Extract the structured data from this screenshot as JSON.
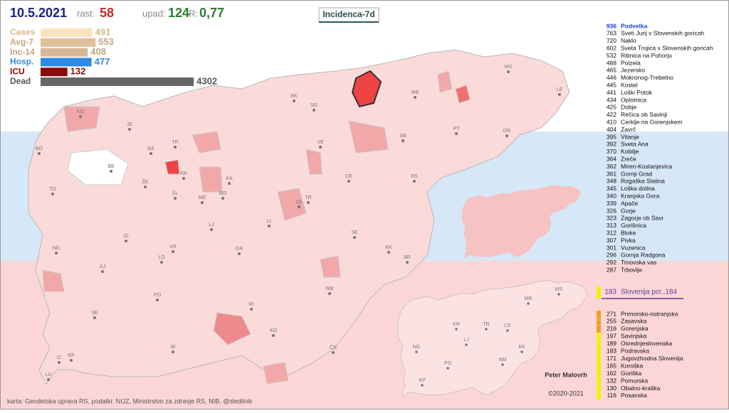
{
  "header": {
    "date": "10.5.2021",
    "rast_label": "rast:",
    "rast": 58,
    "upad_label": "upad:",
    "upad": 124,
    "r_label": "R:",
    "r": "0,77",
    "title": "Incidenca-7d"
  },
  "stats": [
    {
      "label": "Cases",
      "value": 491,
      "color": "#fde3bd",
      "text_color": "#d7b98f"
    },
    {
      "label": "Avg-7",
      "value": 553,
      "color": "#dfbf9c",
      "text_color": "#caa67d"
    },
    {
      "label": "Inc-14",
      "value": 408,
      "color": "#d8b898",
      "text_color": "#c4a07c"
    },
    {
      "label": "Hosp.",
      "value": 477,
      "color": "#2e8be6",
      "text_color": "#2e8be6"
    },
    {
      "label": "ICU",
      "value": 132,
      "color": "#8b0a0a",
      "text_color": "#8b0a0a"
    },
    {
      "label": "Dead",
      "value": 4302,
      "color": "#666666",
      "text_color": "#555555"
    }
  ],
  "municipalities": [
    {
      "value": 936,
      "name": "Podvelka"
    },
    {
      "value": 763,
      "name": "Sveti Jurij v Slovenskih goricah"
    },
    {
      "value": 720,
      "name": "Naklo"
    },
    {
      "value": 602,
      "name": "Sveta Trojica v Slovenskih goricah"
    },
    {
      "value": 532,
      "name": "Ribnica na Pohorju"
    },
    {
      "value": 488,
      "name": "Polzela"
    },
    {
      "value": 465,
      "name": "Jezersko"
    },
    {
      "value": 446,
      "name": "Mokronog-Trebelno"
    },
    {
      "value": 445,
      "name": "Kostel"
    },
    {
      "value": 441,
      "name": "Loški Potok"
    },
    {
      "value": 434,
      "name": "Oplotnica"
    },
    {
      "value": 425,
      "name": "Dobje"
    },
    {
      "value": 422,
      "name": "Rečica ob Savinji"
    },
    {
      "value": 410,
      "name": "Cerklje na Gorenjskem"
    },
    {
      "value": 404,
      "name": "Zavrč"
    },
    {
      "value": 395,
      "name": "Vitanje"
    },
    {
      "value": 392,
      "name": "Sveta Ana"
    },
    {
      "value": 370,
      "name": "Kobilje"
    },
    {
      "value": 364,
      "name": "Zreče"
    },
    {
      "value": 362,
      "name": "Miren-Kostanjevica"
    },
    {
      "value": 361,
      "name": "Gornji Grad"
    },
    {
      "value": 348,
      "name": "Rogaška Slatina"
    },
    {
      "value": 345,
      "name": "Loška dolina"
    },
    {
      "value": 340,
      "name": "Kranjska Gora"
    },
    {
      "value": 339,
      "name": "Apače"
    },
    {
      "value": 326,
      "name": "Gorje"
    },
    {
      "value": 323,
      "name": "Zagorje ob Savi"
    },
    {
      "value": 313,
      "name": "Gorišnica"
    },
    {
      "value": 312,
      "name": "Bloke"
    },
    {
      "value": 307,
      "name": "Pivka"
    },
    {
      "value": 301,
      "name": "Vuzenica"
    },
    {
      "value": 296,
      "name": "Gornja Radgona"
    },
    {
      "value": 292,
      "name": "Trnovska vas"
    },
    {
      "value": 287,
      "name": "Trbovlje"
    }
  ],
  "slovenia": {
    "value": 183,
    "label": "Slovenija  pcr..184",
    "color": "#f5f000"
  },
  "regions": [
    {
      "value": 271,
      "name": "Primorsko-notranjska",
      "color": "#f0a020"
    },
    {
      "value": 255,
      "name": "Zasavska",
      "color": "#f0a020"
    },
    {
      "value": 216,
      "name": "Gorenjska",
      "color": "#f0a020"
    },
    {
      "value": 197,
      "name": "Savinjska",
      "color": "#f5f000"
    },
    {
      "value": 189,
      "name": "Osrednjeslovenska",
      "color": "#f5f000"
    },
    {
      "value": 183,
      "name": "Podravska",
      "color": "#f5f000"
    },
    {
      "value": 171,
      "name": "Jugovzhodna Slovenija",
      "color": "#f5f000"
    },
    {
      "value": 165,
      "name": "Koroška",
      "color": "#f5f000"
    },
    {
      "value": 162,
      "name": "Goriška",
      "color": "#f5f000"
    },
    {
      "value": 132,
      "name": "Pomurska",
      "color": "#f5f000"
    },
    {
      "value": 130,
      "name": "Obalno-kraška",
      "color": "#f5f000"
    },
    {
      "value": 116,
      "name": "Posavska",
      "color": "#f5f000"
    }
  ],
  "map_labels": [
    "KG",
    "JE",
    "BO",
    "RA",
    "TR",
    "BB",
    "KR",
    "ŽE",
    "TO",
    "ŠL",
    "ME",
    "MD",
    "KA",
    "VE",
    "SG",
    "RK",
    "MB",
    "MS",
    "LE",
    "PT",
    "OR",
    "SB",
    "CE",
    "ZA",
    "TR",
    "RS",
    "LJ",
    "LI",
    "SE",
    "KK",
    "BR",
    "ID",
    "NG",
    "LO",
    "VR",
    "GR",
    "AJ",
    "PO",
    "RI",
    "NM",
    "SE",
    "KO",
    "ČR",
    "IB",
    "IZ",
    "KP",
    "LU"
  ],
  "mini_labels": [
    "MS",
    "MB",
    "KR",
    "TR",
    "CE",
    "LJ",
    "NG",
    "KK",
    "PO",
    "NM",
    "KP"
  ],
  "author": "Peter Malovrh",
  "copyright": "©2020-2021",
  "footer": "karta: Geodetska uprava RS,  podatki: NIJZ, Ministrstvo za zdravje RS, NIB, @sledilnik"
}
